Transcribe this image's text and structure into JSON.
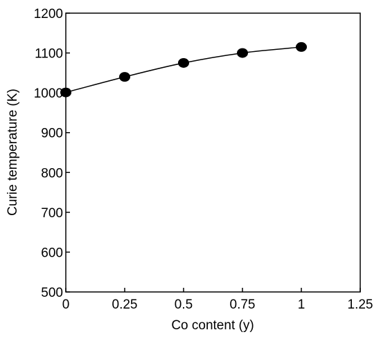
{
  "chart_data": {
    "type": "scatter",
    "xlabel": "Co content (y)",
    "ylabel": "Curie temperature (K)",
    "xlim": [
      0,
      1.25
    ],
    "ylim": [
      500,
      1200
    ],
    "xticks": [
      0,
      0.25,
      0.5,
      0.75,
      1,
      1.25
    ],
    "xtick_labels": [
      "0",
      "0.25",
      "0.5",
      "0.75",
      "1",
      "1.25"
    ],
    "yticks": [
      500,
      600,
      700,
      800,
      900,
      1000,
      1100,
      1200
    ],
    "ytick_labels": [
      "500",
      "600",
      "700",
      "800",
      "900",
      "1000",
      "1100",
      "1200"
    ],
    "grid": false,
    "legend": "none",
    "series": [
      {
        "x": [
          0,
          0.25,
          0.5,
          0.75,
          1
        ],
        "y": [
          1001,
          1040,
          1075,
          1100,
          1115
        ],
        "marker": "filled-circle",
        "line": "smooth-curve",
        "color": "#000000"
      }
    ]
  }
}
